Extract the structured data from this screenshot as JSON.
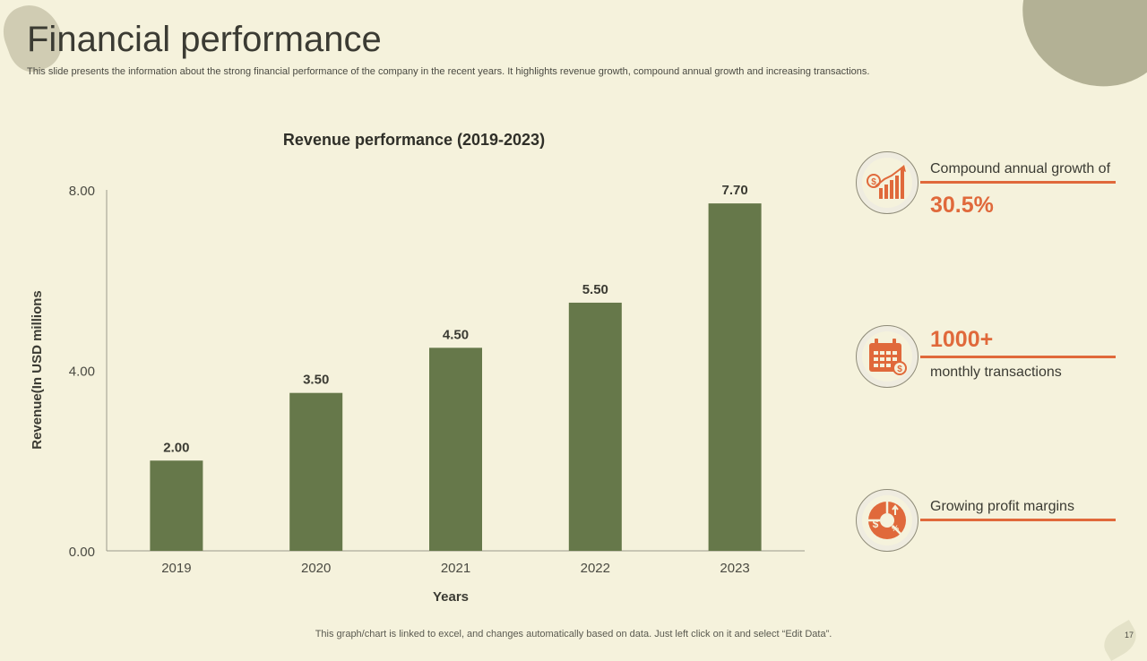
{
  "slide": {
    "title": "Financial performance",
    "subtitle": "This slide presents the information about the strong financial performance of the company in the recent years. It highlights revenue growth, compound annual growth and increasing transactions.",
    "footer": "This graph/chart is linked to excel, and changes automatically based on data. Just left click on it and select “Edit Data”.",
    "page_number": "17"
  },
  "kpis": {
    "cagr": {
      "label": "Compound annual growth of",
      "value": "30.5%",
      "icon": "growth-chart-icon"
    },
    "transactions": {
      "value": "1000+",
      "label": "monthly transactions",
      "icon": "calendar-dollar-icon"
    },
    "margins": {
      "label": "Growing profit margins",
      "icon": "profit-pie-icon"
    }
  },
  "colors": {
    "bar": "#66784a",
    "accent": "#e0693b",
    "background": "#f5f2dc"
  },
  "chart_data": {
    "type": "bar",
    "title": "Revenue performance (2019-2023)",
    "xlabel": "Years",
    "ylabel": "Revenue(In USD millions",
    "categories": [
      "2019",
      "2020",
      "2021",
      "2022",
      "2023"
    ],
    "values": [
      2.0,
      3.5,
      4.5,
      5.5,
      7.7
    ],
    "value_labels": [
      "2.00",
      "3.50",
      "4.50",
      "5.50",
      "7.70"
    ],
    "yticks": [
      "0.00",
      "4.00",
      "8.00"
    ],
    "ytick_values": [
      0,
      4,
      8
    ],
    "ylim": [
      0,
      8
    ]
  }
}
